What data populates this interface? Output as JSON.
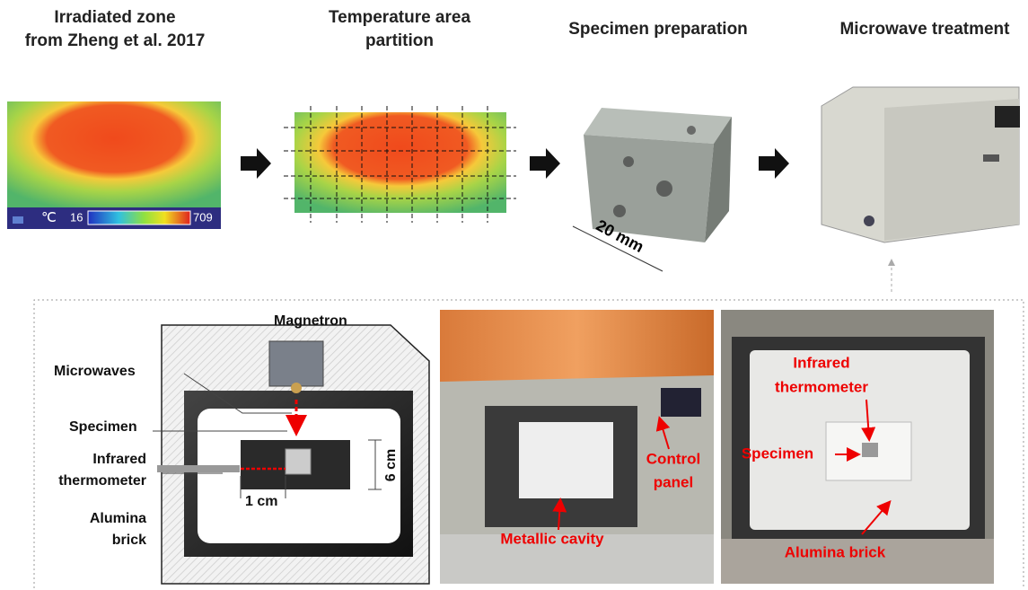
{
  "steps": [
    {
      "title_lines": [
        "Irradiated zone",
        "from Zheng et al. 2017"
      ]
    },
    {
      "title_lines": [
        "Temperature area",
        "partition"
      ]
    },
    {
      "title_lines": [
        "Specimen preparation"
      ]
    },
    {
      "title_lines": [
        "Microwave treatment"
      ]
    }
  ],
  "thermal_scale": {
    "unit": "℃",
    "min": "16",
    "max": "709"
  },
  "specimen_size": "20 mm",
  "schematic": {
    "magnetron": "Magnetron",
    "microwaves": "Microwaves",
    "specimen": "Specimen",
    "infrared_thermometer": [
      "Infrared",
      "thermometer"
    ],
    "alumina_brick": [
      "Alumina",
      "brick"
    ],
    "distance": "1 cm",
    "height": "6 cm"
  },
  "photo_oven": {
    "control_panel": [
      "Control",
      "panel"
    ],
    "cavity": "Metallic cavity"
  },
  "photo_cavity": {
    "infrared_thermometer": [
      "Infrared",
      "thermometer"
    ],
    "specimen": "Specimen",
    "alumina_brick": "Alumina brick"
  }
}
